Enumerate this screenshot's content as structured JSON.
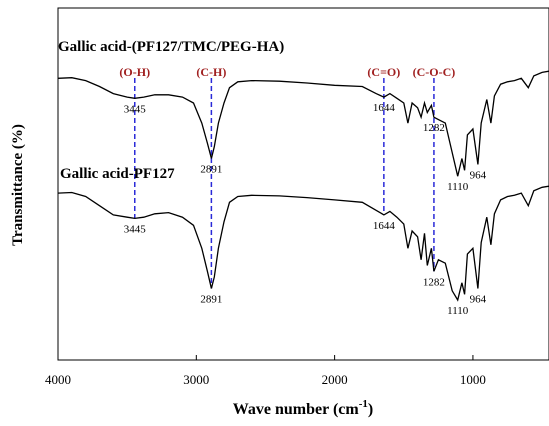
{
  "chart_data": {
    "type": "line",
    "title": "",
    "xlabel": "Wave number (cm",
    "xlabel_sup": "-1",
    "xlabel_close": ")",
    "ylabel": "Transmittance (%)",
    "xlim": [
      4000,
      450
    ],
    "x_reversed": true,
    "x_ticks": [
      4000,
      3000,
      2000,
      1000
    ],
    "grid": false,
    "y_tick_labels": false,
    "series": [
      {
        "name": "Gallic acid-(PF127/TMC/PEG-HA)",
        "color": "#000000",
        "points": [
          [
            4000,
            0.93
          ],
          [
            3900,
            0.935
          ],
          [
            3800,
            0.91
          ],
          [
            3700,
            0.86
          ],
          [
            3600,
            0.8
          ],
          [
            3500,
            0.77
          ],
          [
            3445,
            0.76
          ],
          [
            3380,
            0.77
          ],
          [
            3300,
            0.79
          ],
          [
            3200,
            0.79
          ],
          [
            3100,
            0.77
          ],
          [
            3020,
            0.72
          ],
          [
            2960,
            0.55
          ],
          [
            2920,
            0.38
          ],
          [
            2891,
            0.25
          ],
          [
            2870,
            0.35
          ],
          [
            2840,
            0.55
          ],
          [
            2800,
            0.72
          ],
          [
            2760,
            0.85
          ],
          [
            2700,
            0.9
          ],
          [
            2600,
            0.91
          ],
          [
            2400,
            0.905
          ],
          [
            2200,
            0.89
          ],
          [
            2000,
            0.87
          ],
          [
            1800,
            0.86
          ],
          [
            1700,
            0.8
          ],
          [
            1644,
            0.77
          ],
          [
            1600,
            0.8
          ],
          [
            1550,
            0.76
          ],
          [
            1500,
            0.72
          ],
          [
            1470,
            0.55
          ],
          [
            1440,
            0.72
          ],
          [
            1400,
            0.68
          ],
          [
            1375,
            0.6
          ],
          [
            1350,
            0.72
          ],
          [
            1330,
            0.64
          ],
          [
            1300,
            0.7
          ],
          [
            1282,
            0.6
          ],
          [
            1250,
            0.58
          ],
          [
            1200,
            0.55
          ],
          [
            1150,
            0.3
          ],
          [
            1110,
            0.1
          ],
          [
            1080,
            0.25
          ],
          [
            1060,
            0.15
          ],
          [
            1040,
            0.45
          ],
          [
            1000,
            0.5
          ],
          [
            964,
            0.2
          ],
          [
            940,
            0.55
          ],
          [
            900,
            0.75
          ],
          [
            870,
            0.55
          ],
          [
            845,
            0.78
          ],
          [
            800,
            0.88
          ],
          [
            750,
            0.9
          ],
          [
            700,
            0.91
          ],
          [
            650,
            0.93
          ],
          [
            600,
            0.85
          ],
          [
            560,
            0.95
          ],
          [
            500,
            0.98
          ],
          [
            450,
            0.99
          ]
        ]
      },
      {
        "name": "Gallic acid-PF127",
        "color": "#000000",
        "points": [
          [
            4000,
            0.93
          ],
          [
            3900,
            0.935
          ],
          [
            3800,
            0.9
          ],
          [
            3700,
            0.82
          ],
          [
            3600,
            0.74
          ],
          [
            3500,
            0.72
          ],
          [
            3445,
            0.71
          ],
          [
            3380,
            0.72
          ],
          [
            3300,
            0.75
          ],
          [
            3200,
            0.76
          ],
          [
            3100,
            0.72
          ],
          [
            3020,
            0.65
          ],
          [
            2960,
            0.45
          ],
          [
            2920,
            0.25
          ],
          [
            2891,
            0.1
          ],
          [
            2870,
            0.2
          ],
          [
            2840,
            0.45
          ],
          [
            2800,
            0.68
          ],
          [
            2760,
            0.85
          ],
          [
            2700,
            0.9
          ],
          [
            2600,
            0.91
          ],
          [
            2400,
            0.905
          ],
          [
            2200,
            0.89
          ],
          [
            2000,
            0.87
          ],
          [
            1800,
            0.85
          ],
          [
            1700,
            0.78
          ],
          [
            1644,
            0.74
          ],
          [
            1600,
            0.77
          ],
          [
            1550,
            0.72
          ],
          [
            1500,
            0.66
          ],
          [
            1470,
            0.45
          ],
          [
            1440,
            0.6
          ],
          [
            1400,
            0.55
          ],
          [
            1375,
            0.35
          ],
          [
            1350,
            0.58
          ],
          [
            1330,
            0.3
          ],
          [
            1300,
            0.45
          ],
          [
            1282,
            0.25
          ],
          [
            1250,
            0.35
          ],
          [
            1200,
            0.32
          ],
          [
            1150,
            0.08
          ],
          [
            1110,
            0.0
          ],
          [
            1080,
            0.15
          ],
          [
            1060,
            0.05
          ],
          [
            1040,
            0.4
          ],
          [
            1000,
            0.45
          ],
          [
            964,
            0.1
          ],
          [
            940,
            0.5
          ],
          [
            900,
            0.72
          ],
          [
            870,
            0.48
          ],
          [
            845,
            0.75
          ],
          [
            800,
            0.87
          ],
          [
            750,
            0.9
          ],
          [
            700,
            0.91
          ],
          [
            650,
            0.93
          ],
          [
            600,
            0.82
          ],
          [
            560,
            0.95
          ],
          [
            500,
            0.98
          ],
          [
            450,
            0.99
          ]
        ]
      }
    ],
    "series_labels": [
      "Gallic acid-(PF127/TMC/PEG-HA)",
      "Gallic acid-PF127"
    ],
    "group_annotations": [
      {
        "label": "(O-H)",
        "x": 3445
      },
      {
        "label": "(C-H)",
        "x": 2891
      },
      {
        "label": "(C=O)",
        "x": 1644
      },
      {
        "label": "(C-O-C)",
        "x": 1282
      }
    ],
    "peak_labels": [
      {
        "series": 0,
        "label": "3445",
        "x": 3445
      },
      {
        "series": 0,
        "label": "2891",
        "x": 2891
      },
      {
        "series": 0,
        "label": "1644",
        "x": 1644
      },
      {
        "series": 0,
        "label": "1282",
        "x": 1282
      },
      {
        "series": 0,
        "label": "1110",
        "x": 1110
      },
      {
        "series": 0,
        "label": "964",
        "x": 964
      },
      {
        "series": 1,
        "label": "3445",
        "x": 3445
      },
      {
        "series": 1,
        "label": "2891",
        "x": 2891
      },
      {
        "series": 1,
        "label": "1644",
        "x": 1644
      },
      {
        "series": 1,
        "label": "1282",
        "x": 1282
      },
      {
        "series": 1,
        "label": "1110",
        "x": 1110
      },
      {
        "series": 1,
        "label": "964",
        "x": 964
      }
    ],
    "annotation_color": "#a02020",
    "marker_line_color": "#2a2ad8"
  }
}
